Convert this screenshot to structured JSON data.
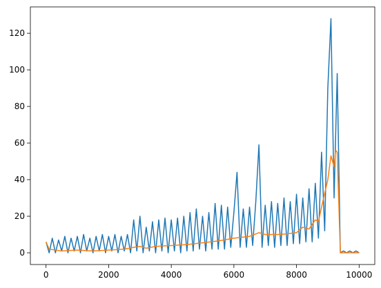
{
  "chart_data": {
    "type": "line",
    "xlim": [
      -500,
      10500
    ],
    "xticks": [
      0,
      2000,
      4000,
      6000,
      8000,
      10000
    ],
    "ylim": [
      -6.4,
      134.4
    ],
    "yticks": [
      0,
      20,
      40,
      60,
      80,
      100,
      120
    ],
    "grid": false,
    "series": [
      {
        "color": "#1f77b4",
        "x": [
          0,
          100,
          200,
          300,
          400,
          500,
          600,
          700,
          800,
          900,
          1000,
          1100,
          1200,
          1300,
          1400,
          1500,
          1600,
          1700,
          1800,
          1900,
          2000,
          2100,
          2200,
          2300,
          2400,
          2500,
          2600,
          2700,
          2800,
          2900,
          3000,
          3100,
          3200,
          3300,
          3400,
          3500,
          3600,
          3700,
          3800,
          3900,
          4000,
          4100,
          4200,
          4300,
          4400,
          4500,
          4600,
          4700,
          4800,
          4900,
          5000,
          5100,
          5200,
          5300,
          5400,
          5500,
          5600,
          5700,
          5800,
          5900,
          6000,
          6100,
          6200,
          6300,
          6400,
          6500,
          6600,
          6700,
          6800,
          6900,
          7000,
          7100,
          7200,
          7300,
          7400,
          7500,
          7600,
          7700,
          7800,
          7900,
          8000,
          8100,
          8200,
          8300,
          8400,
          8500,
          8600,
          8700,
          8800,
          8900,
          9000,
          9100,
          9200,
          9300,
          9400,
          9500,
          9600,
          9700,
          9800,
          9900,
          10000
        ],
        "values": [
          6,
          0,
          8,
          0,
          7,
          1,
          9,
          0,
          8,
          1,
          9,
          0,
          10,
          1,
          8,
          0,
          9,
          1,
          10,
          0,
          9,
          1,
          10,
          0,
          9,
          1,
          10,
          0,
          18,
          1,
          20,
          0,
          14,
          1,
          17,
          0,
          18,
          1,
          19,
          0,
          18,
          1,
          19,
          0,
          20,
          1,
          22,
          1,
          24,
          2,
          20,
          1,
          22,
          2,
          27,
          2,
          26,
          2,
          25,
          3,
          22,
          44,
          3,
          24,
          3,
          25,
          4,
          28,
          59,
          3,
          26,
          4,
          28,
          3,
          27,
          4,
          30,
          4,
          28,
          5,
          32,
          5,
          30,
          6,
          35,
          6,
          38,
          8,
          55,
          12,
          90,
          128,
          30,
          98,
          0,
          1,
          0,
          1,
          0,
          1,
          0
        ]
      },
      {
        "color": "#ff7f0e",
        "x": [
          0,
          100,
          500,
          1000,
          1500,
          2000,
          2500,
          2800,
          3000,
          3200,
          3500,
          4000,
          4500,
          5000,
          5500,
          6000,
          6500,
          6800,
          7000,
          7500,
          8000,
          8200,
          8400,
          8600,
          8700,
          8800,
          9000,
          9100,
          9200,
          9250,
          9300,
          9400,
          10000
        ],
        "values": [
          6,
          2,
          1,
          1.5,
          1,
          1.5,
          2,
          3,
          3.5,
          2.5,
          3.5,
          4,
          4.5,
          5.5,
          6.5,
          8,
          9,
          11,
          10,
          10,
          11,
          14,
          13,
          18,
          17,
          25,
          40,
          53,
          47,
          56,
          55,
          0,
          0
        ]
      }
    ]
  }
}
